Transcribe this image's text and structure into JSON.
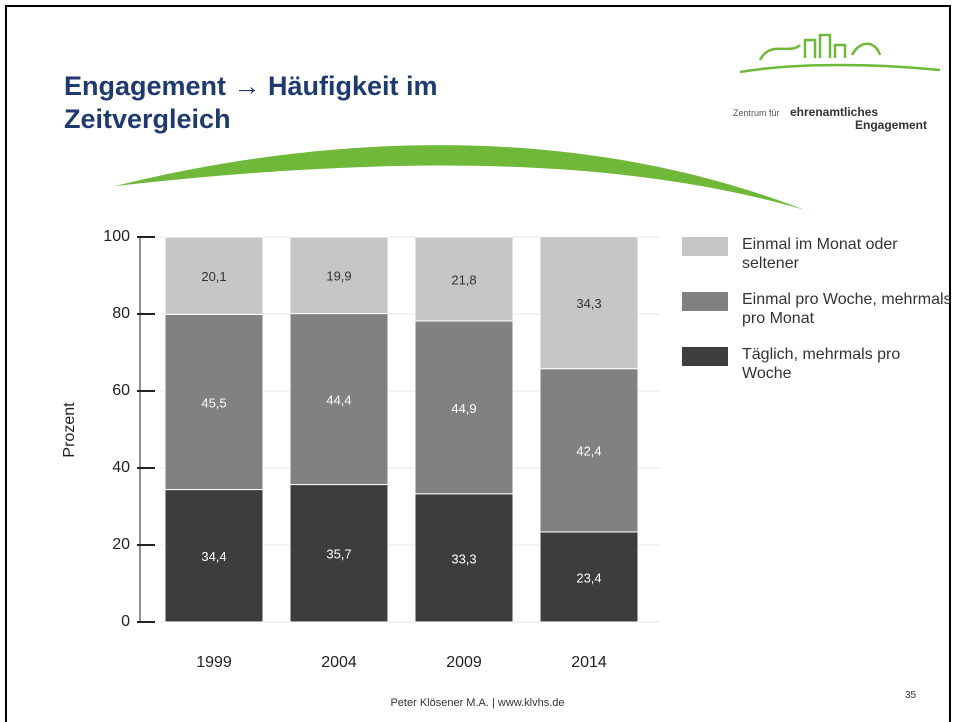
{
  "header": {
    "title": "Engagement → Häufigkeit im Zeitvergleich",
    "logo": {
      "line1": "Zentrum für",
      "line2": "ehrenamtliches",
      "line3": "Engagement"
    }
  },
  "chart_data": {
    "type": "stacked_bar",
    "y_label": "Prozent",
    "categories": [
      "1999",
      "2004",
      "2009",
      "2014"
    ],
    "series": [
      {
        "name": "Täglich, mehrmals pro Woche",
        "color": "#3d3d3d",
        "values": [
          34.4,
          35.7,
          33.3,
          23.4
        ],
        "value_labels": [
          "34,4",
          "35,7",
          "33,3",
          "23,4"
        ]
      },
      {
        "name": "Einmal pro Woche, mehrmals pro Monat",
        "color": "#818181",
        "values": [
          45.5,
          44.4,
          44.9,
          42.4
        ],
        "value_labels": [
          "45,5",
          "44,4",
          "44,9",
          "42,4"
        ]
      },
      {
        "name": "Einmal im Monat oder seltener",
        "color": "#c6c6c6",
        "values": [
          20.1,
          19.9,
          21.8,
          34.3
        ],
        "value_labels": [
          "20,1",
          "19,9",
          "21,8",
          "34,3"
        ]
      }
    ],
    "ylim": [
      0,
      100
    ],
    "yticks": [
      0,
      20,
      40,
      60,
      80,
      100
    ],
    "grid": true
  },
  "footer": {
    "author": "Peter Klösener M.A. | www.klvhs.de",
    "page": "35"
  }
}
